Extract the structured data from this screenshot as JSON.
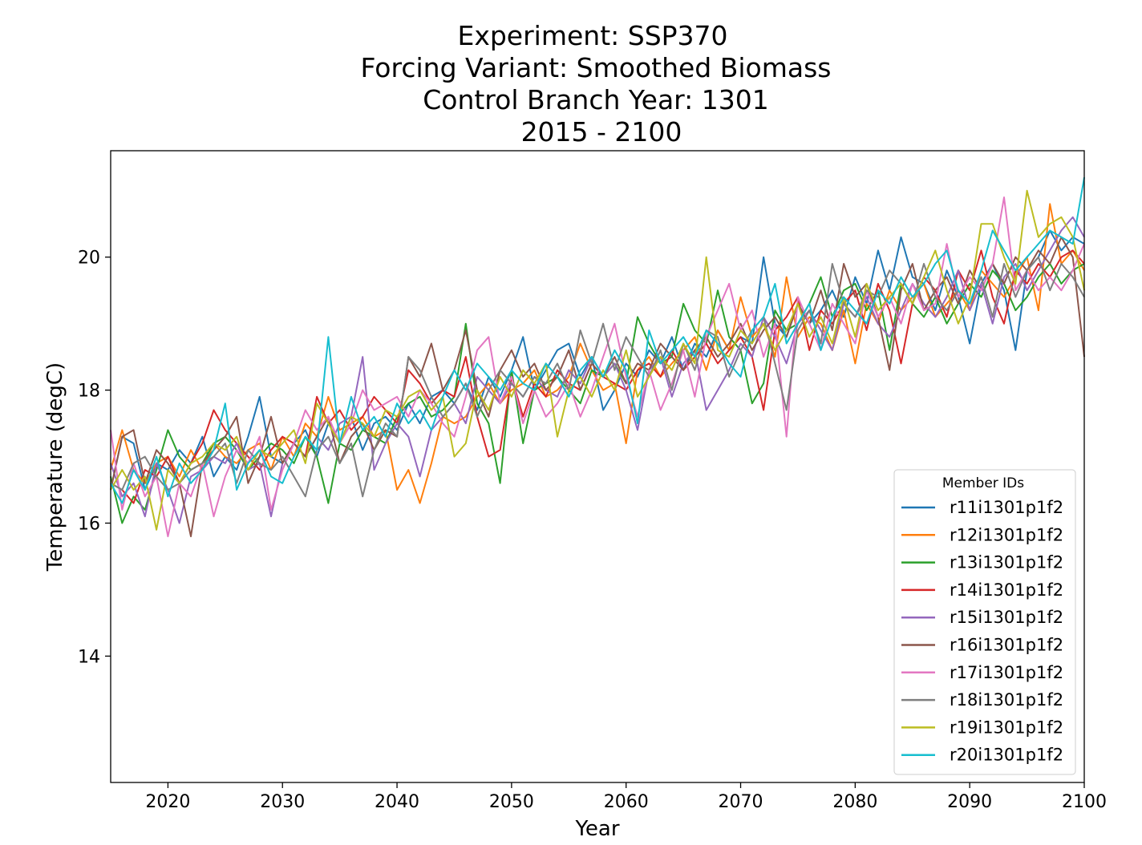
{
  "chart_data": {
    "type": "line",
    "title_lines": [
      "Experiment: SSP370",
      "Forcing Variant: Smoothed Biomass",
      "Control Branch Year: 1301",
      "2015 - 2100"
    ],
    "xlabel": "Year",
    "ylabel": "Temperature (degC)",
    "xlim": [
      2015,
      2100
    ],
    "ylim": [
      12.1,
      21.6
    ],
    "xticks": [
      2020,
      2030,
      2040,
      2050,
      2060,
      2070,
      2080,
      2090,
      2100
    ],
    "yticks": [
      14,
      16,
      18,
      20
    ],
    "grid": false,
    "legend": {
      "title": "Member IDs",
      "placement": "lower-right"
    },
    "x": [
      2015,
      2016,
      2017,
      2018,
      2019,
      2020,
      2021,
      2022,
      2023,
      2024,
      2025,
      2026,
      2027,
      2028,
      2029,
      2030,
      2031,
      2032,
      2033,
      2034,
      2035,
      2036,
      2037,
      2038,
      2039,
      2040,
      2041,
      2042,
      2043,
      2044,
      2045,
      2046,
      2047,
      2048,
      2049,
      2050,
      2051,
      2052,
      2053,
      2054,
      2055,
      2056,
      2057,
      2058,
      2059,
      2060,
      2061,
      2062,
      2063,
      2064,
      2065,
      2066,
      2067,
      2068,
      2069,
      2070,
      2071,
      2072,
      2073,
      2074,
      2075,
      2076,
      2077,
      2078,
      2079,
      2080,
      2081,
      2082,
      2083,
      2084,
      2085,
      2086,
      2087,
      2088,
      2089,
      2090,
      2091,
      2092,
      2093,
      2094,
      2095,
      2096,
      2097,
      2098,
      2099,
      2100
    ],
    "series": [
      {
        "name": "r11i1301p1f2",
        "color": "#1f77b4",
        "values": [
          16.5,
          17.3,
          17.2,
          16.5,
          16.9,
          16.8,
          17.1,
          16.9,
          17.3,
          16.7,
          17.0,
          16.8,
          17.3,
          17.9,
          17.0,
          16.9,
          17.2,
          17.4,
          17.0,
          17.5,
          17.2,
          17.6,
          17.1,
          17.5,
          17.6,
          17.4,
          17.8,
          17.5,
          17.9,
          18.0,
          17.8,
          18.1,
          17.7,
          18.2,
          17.9,
          18.3,
          18.8,
          18.0,
          18.3,
          18.6,
          18.7,
          18.2,
          18.5,
          17.7,
          18.0,
          18.4,
          18.2,
          18.6,
          18.4,
          18.8,
          18.3,
          18.7,
          18.5,
          18.9,
          18.6,
          18.8,
          18.7,
          20.0,
          19.0,
          18.8,
          19.3,
          19.0,
          19.2,
          19.5,
          19.1,
          19.7,
          19.3,
          20.1,
          19.5,
          20.3,
          19.7,
          19.6,
          19.2,
          19.8,
          19.4,
          18.7,
          19.6,
          19.9,
          19.5,
          18.6,
          19.8,
          20.0,
          20.4,
          20.1,
          20.3,
          20.2
        ]
      },
      {
        "name": "r12i1301p1f2",
        "color": "#ff7f0e",
        "values": [
          16.8,
          17.4,
          16.8,
          16.6,
          16.9,
          17.0,
          16.7,
          17.1,
          16.8,
          17.2,
          17.0,
          16.9,
          17.1,
          17.2,
          16.8,
          17.3,
          17.0,
          17.5,
          17.3,
          17.9,
          17.4,
          17.5,
          17.6,
          17.3,
          17.4,
          16.5,
          16.8,
          16.3,
          16.9,
          17.6,
          17.5,
          17.6,
          17.9,
          18.1,
          17.8,
          18.0,
          18.1,
          18.3,
          17.9,
          18.0,
          18.2,
          18.7,
          18.3,
          18.0,
          18.1,
          17.2,
          18.3,
          18.5,
          18.2,
          18.4,
          18.6,
          18.8,
          18.3,
          18.9,
          18.6,
          19.4,
          18.8,
          19.0,
          18.5,
          19.7,
          18.8,
          19.1,
          19.0,
          18.6,
          19.2,
          18.4,
          19.3,
          19.0,
          19.5,
          19.2,
          19.4,
          19.6,
          19.1,
          19.3,
          19.5,
          19.2,
          19.8,
          19.6,
          19.4,
          19.7,
          20.0,
          19.2,
          20.8,
          19.9,
          20.1,
          19.8
        ]
      },
      {
        "name": "r13i1301p1f2",
        "color": "#2ca02c",
        "values": [
          16.7,
          16.0,
          16.4,
          16.2,
          16.8,
          17.4,
          17.0,
          16.8,
          16.9,
          17.2,
          17.3,
          17.1,
          16.8,
          17.0,
          17.2,
          17.1,
          16.9,
          17.3,
          17.0,
          16.3,
          17.2,
          17.1,
          17.4,
          17.3,
          17.2,
          17.6,
          17.8,
          17.9,
          17.6,
          17.7,
          17.9,
          19.0,
          17.8,
          17.5,
          16.6,
          18.3,
          17.2,
          18.0,
          18.1,
          18.2,
          18.0,
          17.8,
          18.3,
          18.2,
          18.4,
          18.1,
          19.1,
          18.7,
          18.4,
          18.5,
          19.3,
          18.9,
          18.7,
          19.5,
          18.8,
          18.6,
          17.8,
          18.1,
          19.2,
          18.9,
          19.0,
          19.3,
          19.7,
          19.1,
          19.5,
          19.6,
          19.2,
          19.5,
          18.6,
          19.6,
          19.3,
          19.1,
          19.4,
          19.0,
          19.3,
          19.6,
          19.4,
          19.8,
          19.6,
          19.2,
          19.4,
          19.7,
          19.9,
          19.6,
          19.8,
          19.9
        ]
      },
      {
        "name": "r14i1301p1f2",
        "color": "#d62728",
        "values": [
          16.6,
          16.5,
          16.3,
          16.8,
          16.7,
          17.0,
          16.6,
          16.9,
          17.2,
          17.7,
          17.4,
          17.2,
          17.0,
          16.8,
          17.1,
          17.3,
          17.2,
          17.0,
          17.9,
          17.5,
          17.7,
          17.4,
          17.6,
          17.9,
          17.7,
          17.5,
          18.3,
          18.1,
          17.8,
          18.0,
          17.9,
          18.5,
          17.6,
          17.0,
          17.1,
          18.2,
          17.6,
          18.1,
          17.9,
          18.3,
          18.1,
          18.0,
          18.4,
          18.2,
          18.1,
          18.0,
          18.3,
          18.4,
          18.2,
          18.6,
          18.3,
          18.5,
          18.7,
          18.4,
          18.6,
          18.8,
          18.5,
          17.7,
          18.9,
          19.1,
          19.4,
          18.6,
          19.2,
          19.0,
          19.3,
          19.5,
          18.9,
          19.6,
          19.2,
          18.4,
          19.3,
          19.7,
          19.5,
          19.1,
          19.8,
          19.5,
          20.1,
          19.4,
          19.0,
          19.8,
          19.6,
          19.9,
          19.7,
          20.0,
          20.1,
          19.9
        ]
      },
      {
        "name": "r15i1301p1f2",
        "color": "#9467bd",
        "values": [
          16.9,
          16.4,
          16.6,
          16.1,
          16.9,
          16.5,
          16.0,
          16.7,
          16.8,
          17.0,
          16.9,
          17.2,
          16.8,
          16.9,
          16.1,
          16.9,
          17.2,
          17.0,
          17.3,
          17.1,
          17.5,
          17.6,
          18.5,
          16.8,
          17.2,
          17.5,
          17.3,
          16.7,
          17.4,
          17.6,
          17.8,
          17.5,
          18.2,
          18.0,
          17.8,
          18.1,
          17.9,
          18.2,
          18.0,
          17.9,
          18.3,
          18.1,
          18.5,
          18.2,
          18.4,
          18.0,
          17.4,
          18.3,
          18.5,
          17.9,
          18.4,
          18.6,
          17.7,
          18.0,
          18.3,
          18.7,
          18.5,
          19.1,
          18.8,
          18.4,
          19.0,
          19.2,
          18.9,
          18.6,
          19.3,
          19.1,
          19.4,
          19.0,
          18.8,
          19.2,
          19.6,
          19.3,
          19.1,
          19.4,
          19.8,
          19.2,
          19.6,
          19.0,
          19.7,
          19.9,
          19.5,
          19.8,
          20.1,
          20.4,
          20.6,
          20.3
        ]
      },
      {
        "name": "r16i1301p1f2",
        "color": "#8c564b",
        "values": [
          16.5,
          17.3,
          17.4,
          16.6,
          17.1,
          16.9,
          16.6,
          15.8,
          16.9,
          17.1,
          17.3,
          17.6,
          16.6,
          17.0,
          17.6,
          16.9,
          17.2,
          17.0,
          17.3,
          17.6,
          16.9,
          17.3,
          17.5,
          17.1,
          17.4,
          17.3,
          18.5,
          18.2,
          18.7,
          18.0,
          18.3,
          18.9,
          18.0,
          17.6,
          18.3,
          18.6,
          18.2,
          18.4,
          18.0,
          18.2,
          18.6,
          18.0,
          18.4,
          18.2,
          18.5,
          18.1,
          18.4,
          18.3,
          18.7,
          18.5,
          18.3,
          18.6,
          18.8,
          18.5,
          18.7,
          19.0,
          18.6,
          18.9,
          19.1,
          18.8,
          19.3,
          19.0,
          19.5,
          18.9,
          19.9,
          19.4,
          19.6,
          19.1,
          18.3,
          19.5,
          19.9,
          19.2,
          19.5,
          19.7,
          19.3,
          19.8,
          19.5,
          19.9,
          19.6,
          20.0,
          19.8,
          20.1,
          19.9,
          20.3,
          20.0,
          18.5
        ]
      },
      {
        "name": "r17i1301p1f2",
        "color": "#e377c2",
        "values": [
          17.4,
          16.2,
          16.9,
          16.4,
          16.7,
          15.8,
          16.6,
          16.4,
          16.9,
          16.1,
          16.7,
          17.1,
          16.9,
          17.3,
          16.2,
          16.8,
          17.2,
          17.7,
          17.4,
          17.6,
          17.2,
          17.5,
          18.0,
          17.7,
          17.8,
          17.9,
          17.6,
          18.0,
          17.8,
          17.5,
          17.3,
          17.9,
          18.6,
          18.8,
          17.8,
          18.2,
          17.5,
          18.0,
          17.6,
          17.8,
          18.1,
          17.6,
          18.0,
          18.5,
          19.0,
          18.2,
          17.6,
          18.3,
          17.7,
          18.1,
          18.6,
          17.9,
          18.8,
          19.2,
          19.6,
          18.9,
          19.2,
          18.5,
          19.0,
          17.3,
          19.4,
          19.0,
          18.6,
          19.3,
          19.0,
          18.7,
          19.5,
          19.1,
          19.4,
          19.0,
          19.6,
          19.2,
          19.3,
          20.2,
          19.4,
          19.7,
          19.5,
          19.9,
          20.9,
          19.5,
          19.8,
          19.5,
          19.7,
          19.5,
          19.8,
          20.2
        ]
      },
      {
        "name": "r18i1301p1f2",
        "color": "#7f7f7f",
        "values": [
          16.6,
          16.5,
          16.9,
          17.0,
          16.7,
          16.5,
          16.6,
          16.8,
          16.9,
          17.0,
          17.2,
          16.6,
          17.1,
          16.9,
          16.8,
          17.0,
          16.7,
          16.4,
          17.1,
          17.3,
          16.9,
          17.2,
          16.4,
          17.1,
          17.5,
          17.3,
          18.5,
          18.3,
          17.9,
          17.6,
          17.8,
          18.1,
          17.6,
          18.0,
          18.3,
          18.1,
          17.9,
          18.2,
          18.1,
          18.4,
          18.0,
          18.9,
          18.4,
          19.0,
          18.3,
          18.8,
          18.5,
          18.2,
          18.6,
          18.0,
          18.7,
          18.3,
          18.9,
          18.8,
          18.2,
          18.6,
          18.9,
          19.1,
          18.4,
          17.7,
          18.9,
          19.2,
          18.7,
          19.9,
          19.3,
          19.1,
          19.5,
          19.4,
          19.8,
          19.6,
          19.3,
          19.9,
          19.4,
          19.2,
          19.5,
          19.3,
          19.7,
          19.1,
          19.9,
          19.4,
          19.8,
          20.0,
          19.5,
          19.9,
          19.7,
          19.4
        ]
      },
      {
        "name": "r19i1301p1f2",
        "color": "#bcbd22",
        "values": [
          16.5,
          16.8,
          16.5,
          16.7,
          15.9,
          16.8,
          16.6,
          16.9,
          17.0,
          17.2,
          17.1,
          17.3,
          16.8,
          17.1,
          17.0,
          17.2,
          17.4,
          16.9,
          17.8,
          17.5,
          17.2,
          17.6,
          17.5,
          17.3,
          17.7,
          17.6,
          17.9,
          18.0,
          17.7,
          17.9,
          17.0,
          17.2,
          18.0,
          17.7,
          18.2,
          17.9,
          18.3,
          18.1,
          18.4,
          17.3,
          18.0,
          18.2,
          17.9,
          18.3,
          18.0,
          18.6,
          17.9,
          18.2,
          18.5,
          18.3,
          18.7,
          18.4,
          20.0,
          18.6,
          18.5,
          18.9,
          18.7,
          19.0,
          18.6,
          18.9,
          19.3,
          18.8,
          19.1,
          18.7,
          19.4,
          18.8,
          19.6,
          19.2,
          19.4,
          19.6,
          19.3,
          19.7,
          20.1,
          19.5,
          19.0,
          19.4,
          20.5,
          20.5,
          20.0,
          19.6,
          21.0,
          20.3,
          20.5,
          20.6,
          20.3,
          19.5
        ]
      },
      {
        "name": "r20i1301p1f2",
        "color": "#17becf",
        "values": [
          16.6,
          16.3,
          16.8,
          16.5,
          17.0,
          16.4,
          16.9,
          16.6,
          16.8,
          17.1,
          17.8,
          16.5,
          16.9,
          17.1,
          16.7,
          16.6,
          17.0,
          17.3,
          17.1,
          18.8,
          17.2,
          17.9,
          17.4,
          17.6,
          17.3,
          17.8,
          17.5,
          17.7,
          17.4,
          17.9,
          18.3,
          18.0,
          18.4,
          18.2,
          18.0,
          18.3,
          18.1,
          18.0,
          18.4,
          18.2,
          17.9,
          18.3,
          18.5,
          18.2,
          18.6,
          18.3,
          17.5,
          18.9,
          18.4,
          18.6,
          18.8,
          18.5,
          18.9,
          18.7,
          18.4,
          18.2,
          18.9,
          19.1,
          19.6,
          18.7,
          19.0,
          19.3,
          18.6,
          19.1,
          19.4,
          19.2,
          19.0,
          19.5,
          19.3,
          19.7,
          19.4,
          19.6,
          19.9,
          20.1,
          19.5,
          19.3,
          19.8,
          20.4,
          20.1,
          19.8,
          20.0,
          20.2,
          20.4,
          20.3,
          20.2,
          21.2
        ]
      }
    ]
  }
}
